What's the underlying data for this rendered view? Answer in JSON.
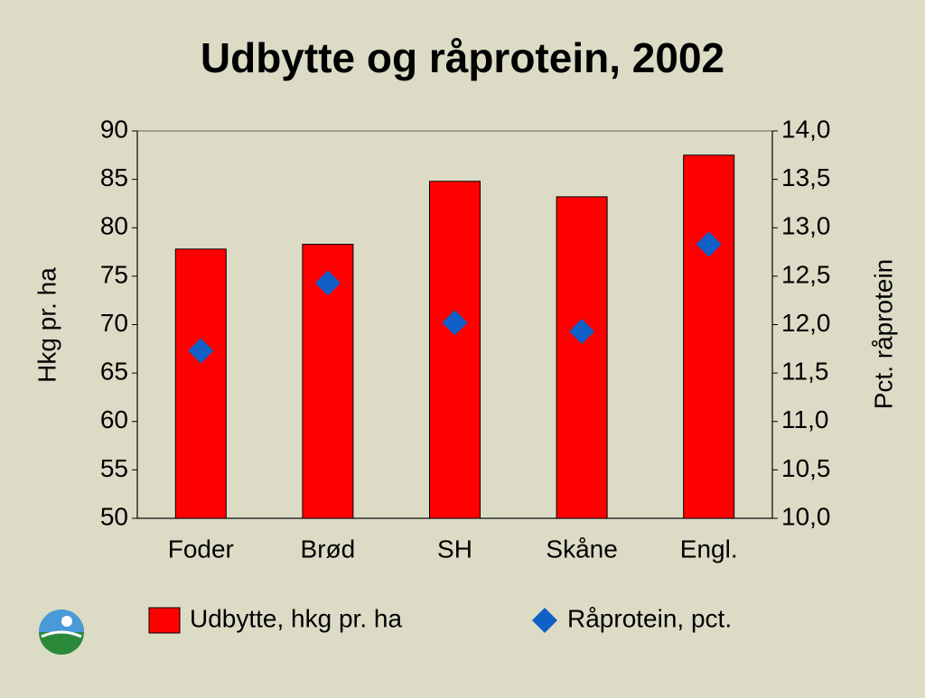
{
  "chart_data": {
    "type": "bar_line_dual",
    "title": "Udbytte og råprotein, 2002",
    "y_label": "Hkg pr. ha",
    "y2_label": "Pct. råprotein",
    "categories": [
      "Foder",
      "Brød",
      "SH",
      "Skåne",
      "Engl."
    ],
    "series": [
      {
        "name": "Udbytte, hkg pr. ha",
        "type": "bar",
        "color": "#ff0000",
        "values": [
          77.8,
          78.3,
          84.8,
          83.2,
          87.5
        ]
      },
      {
        "name": "Råprotein, pct.",
        "type": "scatter",
        "marker": "diamond",
        "color": "#1060c8",
        "axis": "y2",
        "values": [
          11.73,
          12.43,
          12.02,
          11.93,
          12.83
        ]
      }
    ],
    "ylim": [
      50,
      90
    ],
    "yticks": [
      50,
      55,
      60,
      65,
      70,
      75,
      80,
      85,
      90
    ],
    "y2lim": [
      10,
      14
    ],
    "y2ticks": [
      {
        "value": 10,
        "label": "10,0"
      },
      {
        "value": 10.5,
        "label": "10,5"
      },
      {
        "value": 11,
        "label": "11,0"
      },
      {
        "value": 11.5,
        "label": "11,5"
      },
      {
        "value": 12,
        "label": "12,0"
      },
      {
        "value": 12.5,
        "label": "12,5"
      },
      {
        "value": 13,
        "label": "13,0"
      },
      {
        "value": 13.5,
        "label": "13,5"
      },
      {
        "value": 14,
        "label": "14,0"
      }
    ],
    "legend": "bottom"
  }
}
